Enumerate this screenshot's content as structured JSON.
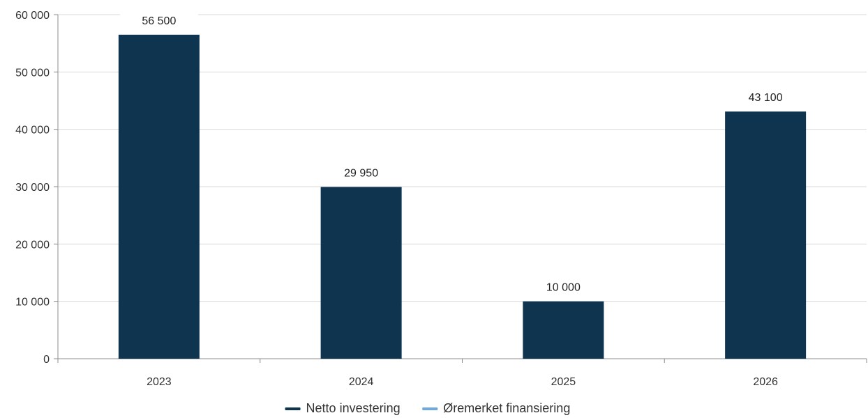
{
  "chart_data": {
    "type": "bar",
    "title": "",
    "xlabel": "",
    "ylabel": "",
    "categories": [
      "2023",
      "2024",
      "2025",
      "2026"
    ],
    "series": [
      {
        "name": "Netto investering",
        "color": "#0f3450",
        "values": [
          56500,
          29950,
          10000,
          43100
        ],
        "data_labels": [
          "56 500",
          "29 950",
          "10 000",
          "43 100"
        ]
      },
      {
        "name": "Øremerket finansiering",
        "color": "#6fa8dc",
        "values": [
          0,
          0,
          0,
          0
        ],
        "data_labels": []
      }
    ],
    "ylim": [
      0,
      60000
    ],
    "yticks": [
      0,
      10000,
      20000,
      30000,
      40000,
      50000,
      60000
    ],
    "ytick_labels": [
      "0",
      "10 000",
      "20 000",
      "30 000",
      "40 000",
      "50 000",
      "60 000"
    ],
    "grid": true,
    "legend_position": "bottom-center",
    "colors": {
      "grid": "#d9d9d9",
      "axis": "#8c8c8c"
    }
  }
}
